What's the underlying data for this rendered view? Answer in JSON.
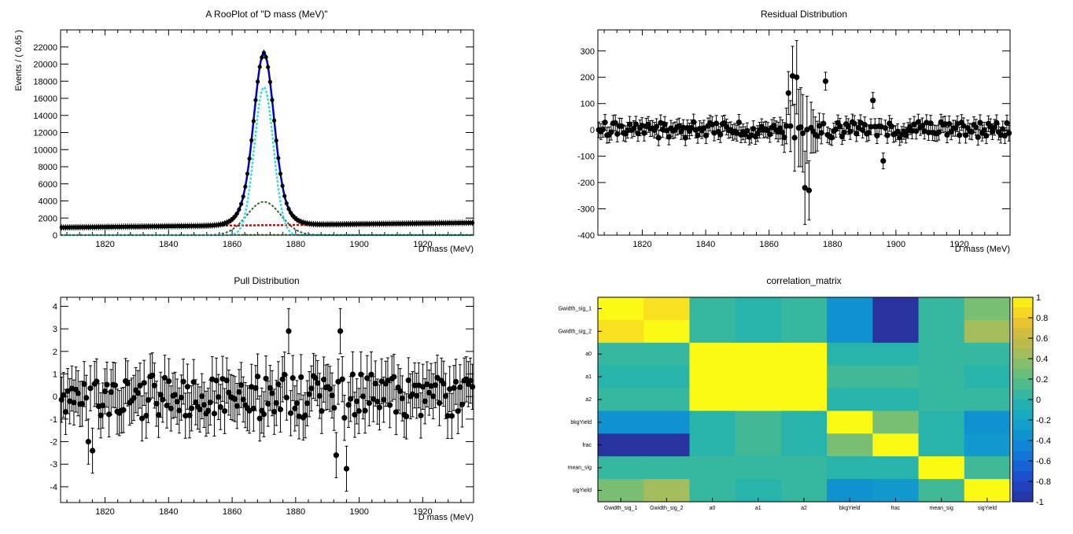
{
  "chart_data": [
    {
      "type": "line",
      "title": "A RooPlot of \"D mass (MeV)\"",
      "xlabel": "D mass (MeV)",
      "ylabel": "Events / ( 0.65 )",
      "xlim": [
        1806,
        1936
      ],
      "ylim": [
        0,
        24000
      ],
      "xticks": [
        1820,
        1840,
        1860,
        1880,
        1900,
        1920
      ],
      "yticks": [
        0,
        2000,
        4000,
        6000,
        8000,
        10000,
        12000,
        14000,
        16000,
        18000,
        20000,
        22000
      ],
      "model": {
        "peak_mean": 1870,
        "peak_height": 21300,
        "bkg_start": 900,
        "bkg_end": 1450,
        "core_height": 17300,
        "core_sigma": 3.0,
        "wide_height": 3900,
        "wide_sigma": 5.3,
        "bkg_curve_start": 950,
        "bkg_curve_end": 1380
      },
      "series": [
        {
          "name": "data",
          "color": "#000000"
        },
        {
          "name": "total fit",
          "color": "#0000cc"
        },
        {
          "name": "signal gaussian 1",
          "color": "#33dddd"
        },
        {
          "name": "signal gaussian 2",
          "color": "#336633"
        },
        {
          "name": "background",
          "color": "#dd0000"
        },
        {
          "name": "zero baseline",
          "color": "#339933"
        }
      ]
    },
    {
      "type": "scatter",
      "title": "Residual Distribution",
      "xlabel": "D mass (MeV)",
      "ylabel": "",
      "xlim": [
        1806,
        1936
      ],
      "ylim": [
        -400,
        380
      ],
      "xticks": [
        1820,
        1840,
        1860,
        1880,
        1900,
        1920
      ],
      "yticks": [
        -400,
        -300,
        -200,
        -100,
        0,
        100,
        200,
        300
      ],
      "n_points": 200,
      "x_start": 1806.3,
      "x_step": 0.65,
      "noise_amplitude": 30,
      "features": [
        {
          "x": 1866,
          "y": 140
        },
        {
          "x": 1867.5,
          "y": 205
        },
        {
          "x": 1869,
          "y": 200
        },
        {
          "x": 1871,
          "y": -220
        },
        {
          "x": 1872.5,
          "y": -230
        },
        {
          "x": 1878,
          "y": 185
        },
        {
          "x": 1893,
          "y": 112
        },
        {
          "x": 1896,
          "y": -118
        }
      ]
    },
    {
      "type": "scatter",
      "title": "Pull Distribution",
      "xlabel": "D mass (MeV)",
      "ylabel": "",
      "xlim": [
        1806,
        1936
      ],
      "ylim": [
        -4.7,
        4.4
      ],
      "xticks": [
        1820,
        1840,
        1860,
        1880,
        1900,
        1920
      ],
      "yticks": [
        -4,
        -3,
        -2,
        -1,
        0,
        1,
        2,
        3,
        4
      ],
      "n_points": 200,
      "x_start": 1806.3,
      "x_step": 0.65,
      "noise_amplitude": 1.0,
      "features": [
        {
          "x": 1815,
          "y": -2.0
        },
        {
          "x": 1816,
          "y": -2.4
        },
        {
          "x": 1878,
          "y": 2.9
        },
        {
          "x": 1893,
          "y": -2.6
        },
        {
          "x": 1894,
          "y": 2.9
        },
        {
          "x": 1896,
          "y": -3.2
        }
      ]
    },
    {
      "type": "heatmap",
      "title": "correlation_matrix",
      "row_labels": [
        "Gwidth_sig_1",
        "Gwidth_sig_2",
        "a0",
        "a1",
        "a2",
        "bkgYield",
        "frac",
        "mean_sig",
        "sigYield"
      ],
      "col_labels": [
        "Gwidth_sig_1",
        "Gwidth_sig_2",
        "a0",
        "a1",
        "a2",
        "bkgYield",
        "frac",
        "mean_sig",
        "sigYield"
      ],
      "values": [
        [
          1.0,
          0.9,
          0.05,
          0.0,
          0.05,
          -0.35,
          -1.0,
          0.05,
          0.3
        ],
        [
          0.9,
          1.0,
          0.05,
          0.0,
          0.05,
          -0.35,
          -1.0,
          0.05,
          0.45
        ],
        [
          0.05,
          0.05,
          1.0,
          1.0,
          1.0,
          0.0,
          0.0,
          0.05,
          0.05
        ],
        [
          0.0,
          0.0,
          1.0,
          1.0,
          1.0,
          0.1,
          0.1,
          0.05,
          0.0
        ],
        [
          0.05,
          0.05,
          1.0,
          1.0,
          1.0,
          0.0,
          0.0,
          0.05,
          0.05
        ],
        [
          -0.35,
          -0.35,
          0.0,
          0.1,
          0.0,
          1.0,
          0.3,
          0.0,
          -0.35
        ],
        [
          -1.0,
          -1.0,
          0.0,
          0.1,
          0.0,
          0.3,
          1.0,
          0.0,
          -0.3
        ],
        [
          0.05,
          0.05,
          0.05,
          0.05,
          0.05,
          0.0,
          0.0,
          1.0,
          0.1
        ],
        [
          0.3,
          0.45,
          0.05,
          0.0,
          0.05,
          -0.35,
          -0.3,
          0.1,
          1.0
        ]
      ],
      "zlim": [
        -1,
        1
      ],
      "colorbar_ticks": [
        "1",
        "0.8",
        "0.6",
        "0.4",
        "0.2",
        "0",
        "-0.2",
        "-0.4",
        "-0.6",
        "-0.8",
        "-1"
      ]
    }
  ]
}
